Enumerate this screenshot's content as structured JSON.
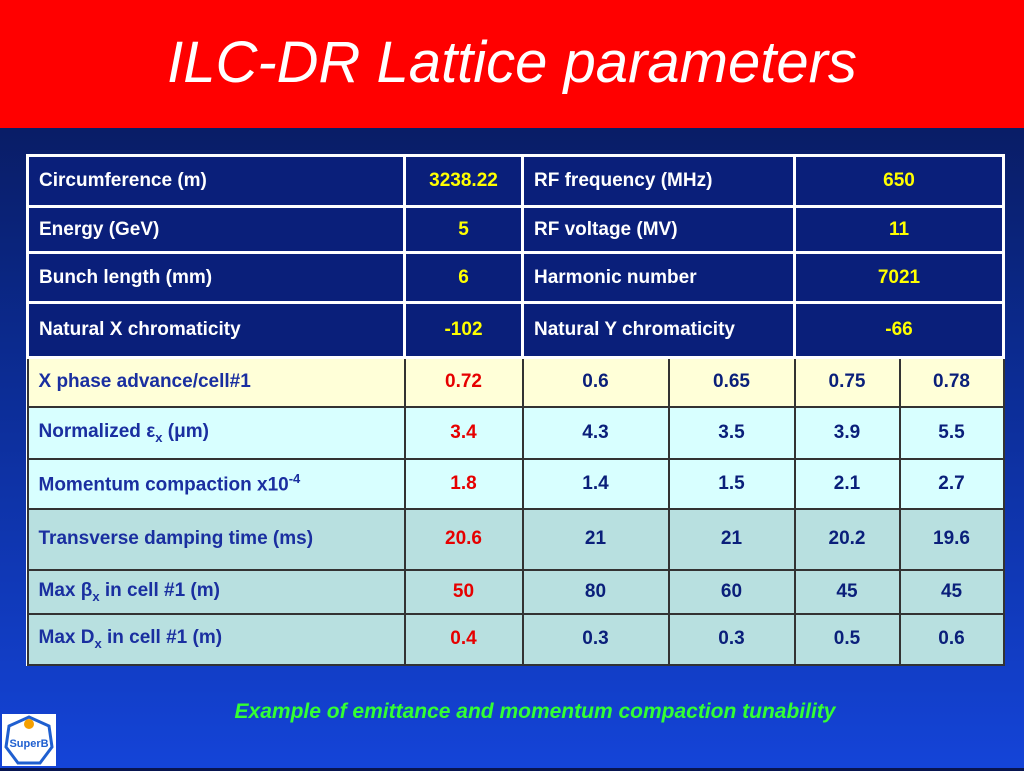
{
  "title": "ILC-DR Lattice parameters",
  "top_rows": [
    {
      "label1": "Circumference (m)",
      "value1": "3238.22",
      "label2": "RF frequency (MHz)",
      "value2": "650"
    },
    {
      "label1": "Energy (GeV)",
      "value1": "5",
      "label2": "RF voltage (MV)",
      "value2": "11"
    },
    {
      "label1": "Bunch length (mm)",
      "value1": "6",
      "label2": "Harmonic number",
      "value2": "7021"
    },
    {
      "label1": "Natural X chromaticity",
      "value1": "-102",
      "label2": "Natural Y chromaticity",
      "value2": "-66"
    }
  ],
  "tunability_rows": [
    {
      "label": "X phase advance/cell#1",
      "values": [
        "0.72",
        "0.6",
        "0.65",
        "0.75",
        "0.78"
      ]
    },
    {
      "label_parts": [
        "Normalized ",
        "ε",
        "x",
        " (",
        "μ",
        "m)"
      ],
      "values": [
        "3.4",
        "4.3",
        "3.5",
        "3.9",
        "5.5"
      ]
    },
    {
      "label_parts": [
        "Momentum compaction x10",
        "-4"
      ],
      "values": [
        "1.8",
        "1.4",
        "1.5",
        "2.1",
        "2.7"
      ]
    },
    {
      "label": "Transverse damping time (ms)",
      "values": [
        "20.6",
        "21",
        "21",
        "20.2",
        "19.6"
      ]
    },
    {
      "label_parts": [
        "Max ",
        "β",
        "x",
        " in cell #1 (m)"
      ],
      "values": [
        "50",
        "80",
        "60",
        "45",
        "45"
      ]
    },
    {
      "label_parts": [
        "Max D",
        "x",
        " in cell #1 (m)"
      ],
      "values": [
        "0.4",
        "0.3",
        "0.3",
        "0.5",
        "0.6"
      ]
    }
  ],
  "caption": "Example of emittance and momentum compaction tunability",
  "logo": {
    "text": "SuperB",
    "icon": "superb-logo-icon"
  },
  "colors": {
    "title_bar": "#ff0000",
    "table_header_bg": "#0a1f7a",
    "highlight_value": "#ffff00",
    "first_column_value": "#e60000",
    "caption": "#33ff33"
  }
}
